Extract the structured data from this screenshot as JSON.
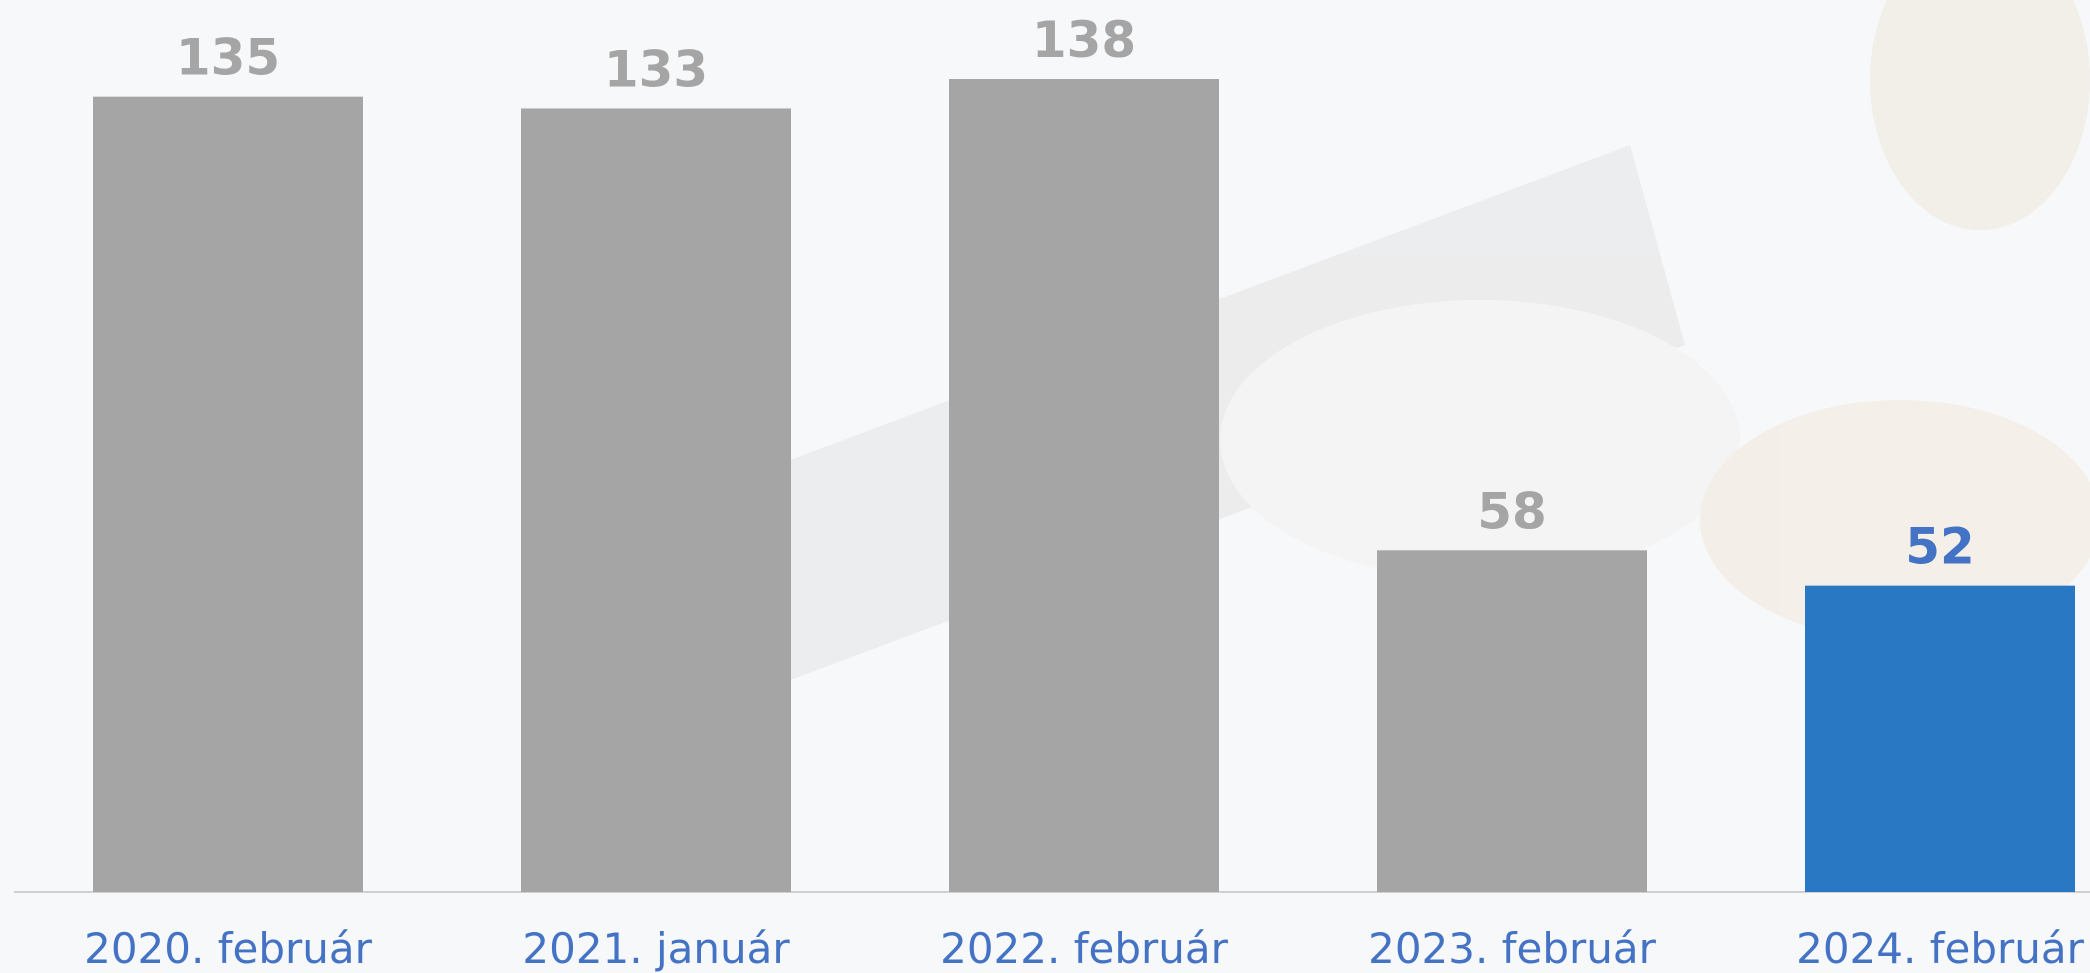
{
  "chart_data": {
    "type": "bar",
    "categories": [
      "2020. február",
      "2021. január",
      "2022. február",
      "2023. február",
      "2024. február"
    ],
    "values": [
      135,
      133,
      138,
      58,
      52
    ],
    "colors": [
      "#a5a5a5",
      "#a5a5a5",
      "#a5a5a5",
      "#a5a5a5",
      "#2878c4"
    ],
    "label_colors": [
      "#a5a5a5",
      "#a5a5a5",
      "#a5a5a5",
      "#a5a5a5",
      "#4472c4"
    ],
    "category_color": "#4472c4"
  }
}
